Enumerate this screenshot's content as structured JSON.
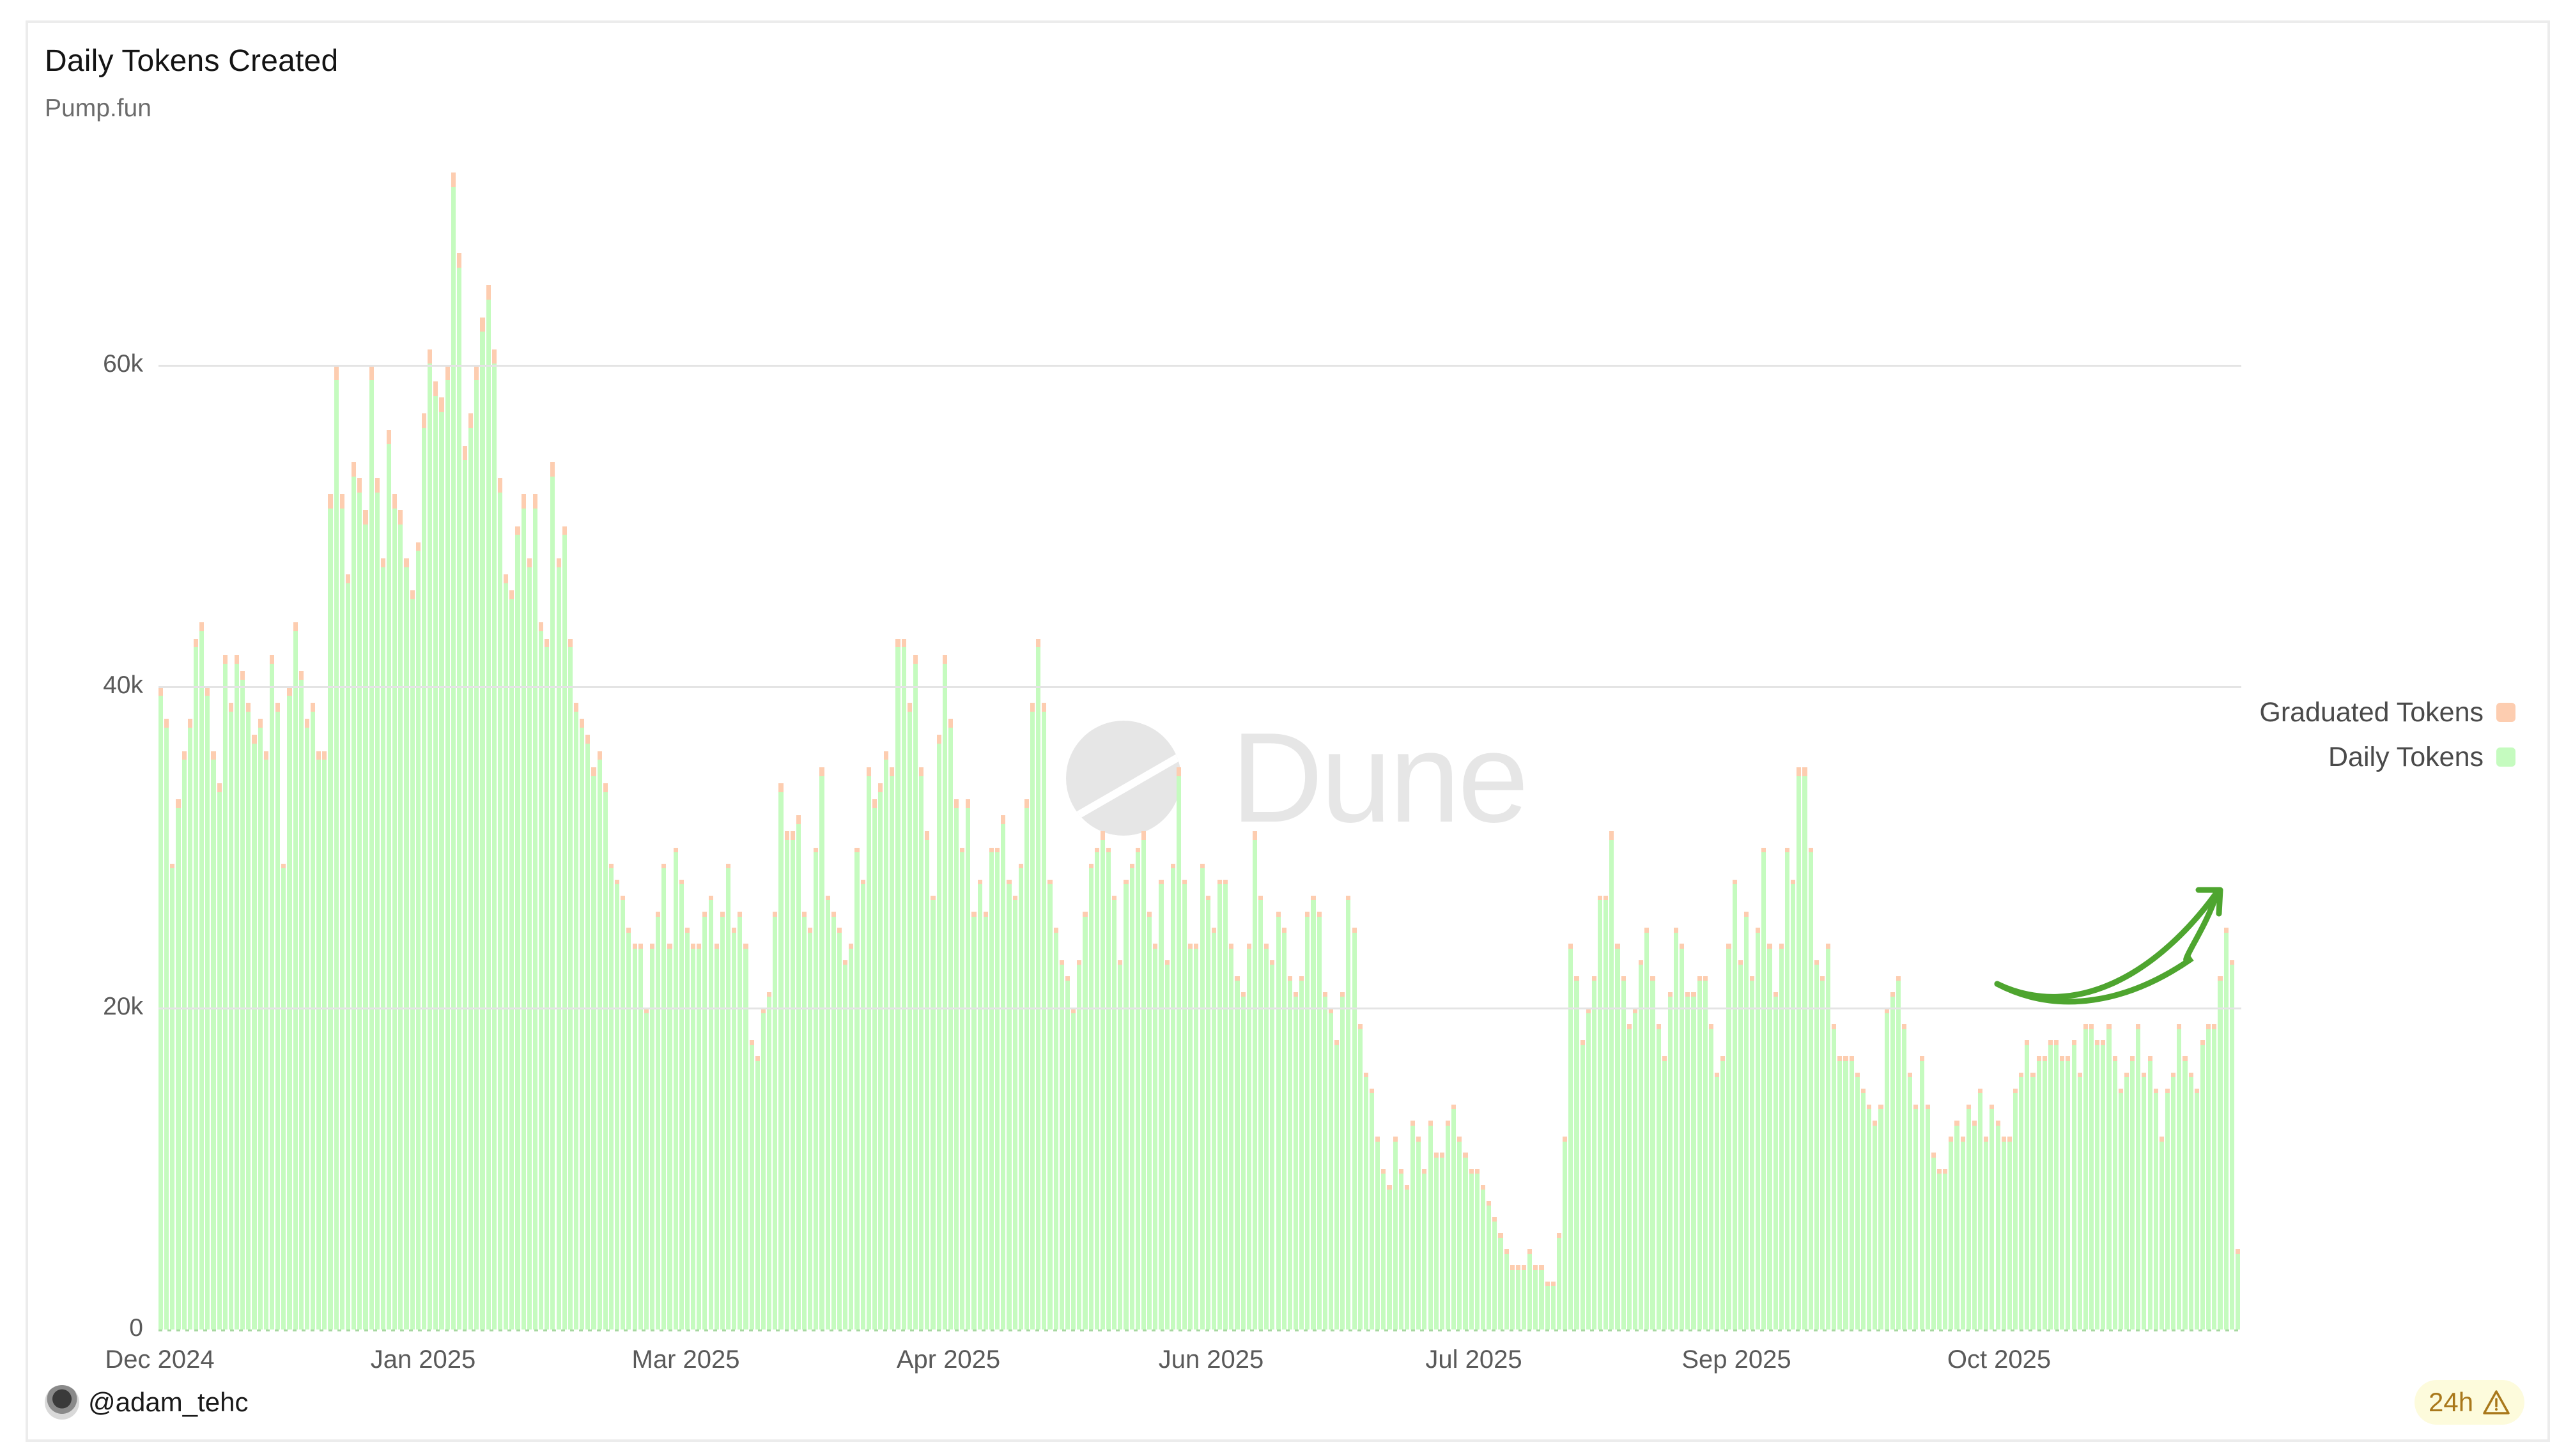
{
  "header": {
    "title": "Daily Tokens Created",
    "subtitle": "Pump.fun"
  },
  "legend": [
    {
      "label": "Graduated Tokens",
      "color": "#fdcdb0"
    },
    {
      "label": "Daily Tokens",
      "color": "#c5fbbf"
    }
  ],
  "watermark": {
    "text": "Dune"
  },
  "footer": {
    "author": "@adam_tehc",
    "badge_text": "24h",
    "badge_icon": "warning-icon"
  },
  "colors": {
    "daily": "#c5fbbf",
    "graduated": "#fdcdb0",
    "annotation_arrow": "#4ea52f",
    "grid": "#e4e4e4"
  },
  "chart_data": {
    "type": "bar",
    "stacked": true,
    "title": "Daily Tokens Created",
    "subtitle": "Pump.fun",
    "xlabel": "",
    "ylabel": "",
    "ylim": [
      0,
      72000
    ],
    "yticks": [
      {
        "value": 0,
        "label": "0"
      },
      {
        "value": 20000,
        "label": "20k"
      },
      {
        "value": 40000,
        "label": "40k"
      },
      {
        "value": 60000,
        "label": "60k"
      }
    ],
    "x_tick_labels": [
      "Dec 2024",
      "Jan 2025",
      "Mar 2025",
      "Apr 2025",
      "Jun 2025",
      "Jul 2025",
      "Sep 2025",
      "Oct 2025"
    ],
    "grid": true,
    "legend_position": "right",
    "series": [
      {
        "name": "Daily Tokens",
        "color": "#c5fbbf",
        "note": "daily totals in thousands, one value per day from Dec 2024 through early Nov 2025, read from bar tops",
        "values": [
          40,
          38,
          29,
          33,
          36,
          38,
          43,
          44,
          40,
          36,
          34,
          42,
          39,
          42,
          41,
          39,
          37,
          38,
          36,
          42,
          39,
          29,
          40,
          44,
          41,
          38,
          39,
          36,
          36,
          52,
          60,
          52,
          47,
          54,
          53,
          51,
          60,
          53,
          48,
          56,
          52,
          51,
          48,
          46,
          49,
          57,
          61,
          59,
          58,
          60,
          72,
          67,
          55,
          57,
          60,
          63,
          65,
          61,
          53,
          47,
          46,
          50,
          52,
          48,
          52,
          44,
          43,
          54,
          48,
          50,
          43,
          39,
          38,
          37,
          35,
          36,
          34,
          29,
          28,
          27,
          25,
          24,
          24,
          20,
          24,
          26,
          29,
          24,
          30,
          28,
          25,
          24,
          24,
          26,
          27,
          24,
          26,
          29,
          25,
          26,
          24,
          18,
          17,
          20,
          21,
          26,
          34,
          31,
          31,
          32,
          26,
          25,
          30,
          35,
          27,
          26,
          25,
          23,
          24,
          30,
          28,
          35,
          33,
          34,
          36,
          35,
          43,
          43,
          39,
          42,
          35,
          31,
          27,
          37,
          42,
          38,
          33,
          30,
          33,
          26,
          28,
          26,
          30,
          30,
          32,
          28,
          27,
          29,
          33,
          39,
          43,
          39,
          28,
          25,
          23,
          22,
          20,
          23,
          26,
          29,
          30,
          31,
          30,
          27,
          23,
          28,
          29,
          30,
          31,
          26,
          24,
          28,
          23,
          29,
          35,
          28,
          24,
          24,
          29,
          27,
          25,
          28,
          28,
          24,
          22,
          21,
          24,
          31,
          27,
          24,
          23,
          26,
          25,
          22,
          21,
          22,
          26,
          27,
          26,
          21,
          20,
          18,
          21,
          27,
          25,
          19,
          16,
          15,
          12,
          10,
          9,
          12,
          10,
          9,
          13,
          12,
          10,
          13,
          11,
          11,
          13,
          14,
          12,
          11,
          10,
          10,
          9,
          8,
          7,
          6,
          5,
          4,
          4,
          4,
          5,
          4,
          4,
          3,
          3,
          6,
          12,
          24,
          22,
          18,
          20,
          22,
          27,
          27,
          31,
          24,
          22,
          19,
          20,
          23,
          25,
          22,
          19,
          17,
          21,
          25,
          24,
          21,
          21,
          22,
          22,
          19,
          16,
          17,
          24,
          28,
          23,
          26,
          22,
          25,
          30,
          24,
          21,
          24,
          30,
          28,
          35,
          35,
          30,
          23,
          22,
          24,
          19,
          17,
          17,
          17,
          16,
          15,
          14,
          13,
          14,
          20,
          21,
          22,
          19,
          16,
          14,
          17,
          14,
          11,
          10,
          10,
          12,
          13,
          12,
          14,
          13,
          15,
          12,
          14,
          13,
          12,
          12,
          15,
          16,
          18,
          16,
          17,
          17,
          18,
          18,
          17,
          17,
          18,
          16,
          19,
          19,
          18,
          18,
          19,
          17,
          15,
          16,
          17,
          19,
          16,
          17,
          15,
          12,
          15,
          16,
          19,
          17,
          16,
          15,
          18,
          19,
          19,
          22,
          25,
          23,
          5
        ]
      },
      {
        "name": "Graduated Tokens",
        "color": "#fdcdb0",
        "note": "thin cap on each bar; roughly 0.3-1.2k per day, larger during Jan 2025 peak",
        "values_summary": "approx 0.3k-1.2k per day"
      }
    ],
    "annotations": [
      {
        "type": "curved-arrow",
        "color": "#4ea52f",
        "description": "upward trend arrow over late Oct / early Nov 2025"
      }
    ]
  }
}
